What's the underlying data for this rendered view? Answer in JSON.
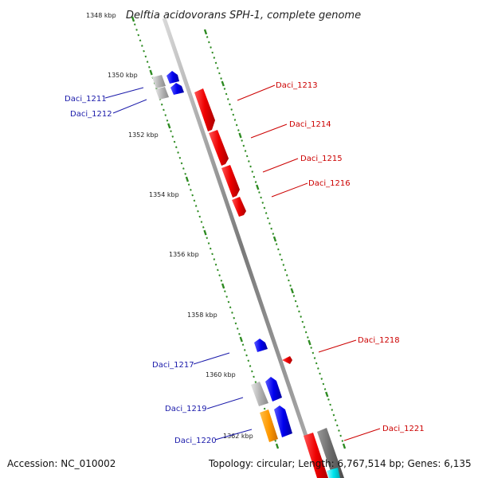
{
  "title": "Delftia acidovorans SPH-1, complete genome",
  "footer": {
    "accession": "Accession: NC_010002",
    "topology": "Topology: circular; Length: 6,767,514 bp; Genes: 6,135"
  },
  "ruler": {
    "ticks": [
      "1348 kbp",
      "1350 kbp",
      "1352 kbp",
      "1354 kbp",
      "1356 kbp",
      "1358 kbp",
      "1360 kbp",
      "1362 kbp"
    ]
  },
  "genes": {
    "forward": [
      "Daci_1213",
      "Daci_1214",
      "Daci_1215",
      "Daci_1216",
      "Daci_1218",
      "Daci_1221"
    ],
    "reverse": [
      "Daci_1211",
      "Daci_1212",
      "Daci_1217",
      "Daci_1219",
      "Daci_1220"
    ]
  },
  "colors": {
    "backbone": "#8c8c8c",
    "ruler_green": "#2e8b22",
    "forward_gene": "#ee1111",
    "reverse_gene": "#1111ee",
    "neutral_gene": "#b8b8b8",
    "orange_gene": "#ff9900",
    "cyan_gene": "#00e5ee",
    "forward_label": "#cc0000",
    "reverse_label": "#1a1aaa"
  }
}
